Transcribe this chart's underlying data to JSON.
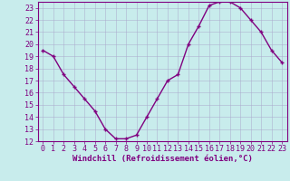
{
  "x": [
    0,
    1,
    2,
    3,
    4,
    5,
    6,
    7,
    8,
    9,
    10,
    11,
    12,
    13,
    14,
    15,
    16,
    17,
    18,
    19,
    20,
    21,
    22,
    23
  ],
  "y": [
    19.5,
    19.0,
    17.5,
    16.5,
    15.5,
    14.5,
    13.0,
    12.2,
    12.2,
    12.5,
    14.0,
    15.5,
    17.0,
    17.5,
    20.0,
    21.5,
    23.2,
    23.5,
    23.5,
    23.0,
    22.0,
    21.0,
    19.5,
    18.5
  ],
  "line_color": "#800080",
  "marker": "+",
  "background_color": "#c8ecec",
  "grid_color": "#aaaacc",
  "xlabel": "Windchill (Refroidissement éolien,°C)",
  "xlim": [
    -0.5,
    23.5
  ],
  "ylim": [
    12,
    23.5
  ],
  "xticks": [
    0,
    1,
    2,
    3,
    4,
    5,
    6,
    7,
    8,
    9,
    10,
    11,
    12,
    13,
    14,
    15,
    16,
    17,
    18,
    19,
    20,
    21,
    22,
    23
  ],
  "yticks": [
    12,
    13,
    14,
    15,
    16,
    17,
    18,
    19,
    20,
    21,
    22,
    23
  ],
  "xlabel_fontsize": 6.5,
  "tick_fontsize": 6.0,
  "line_width": 1.0,
  "marker_size": 3.5,
  "marker_edge_width": 1.0
}
